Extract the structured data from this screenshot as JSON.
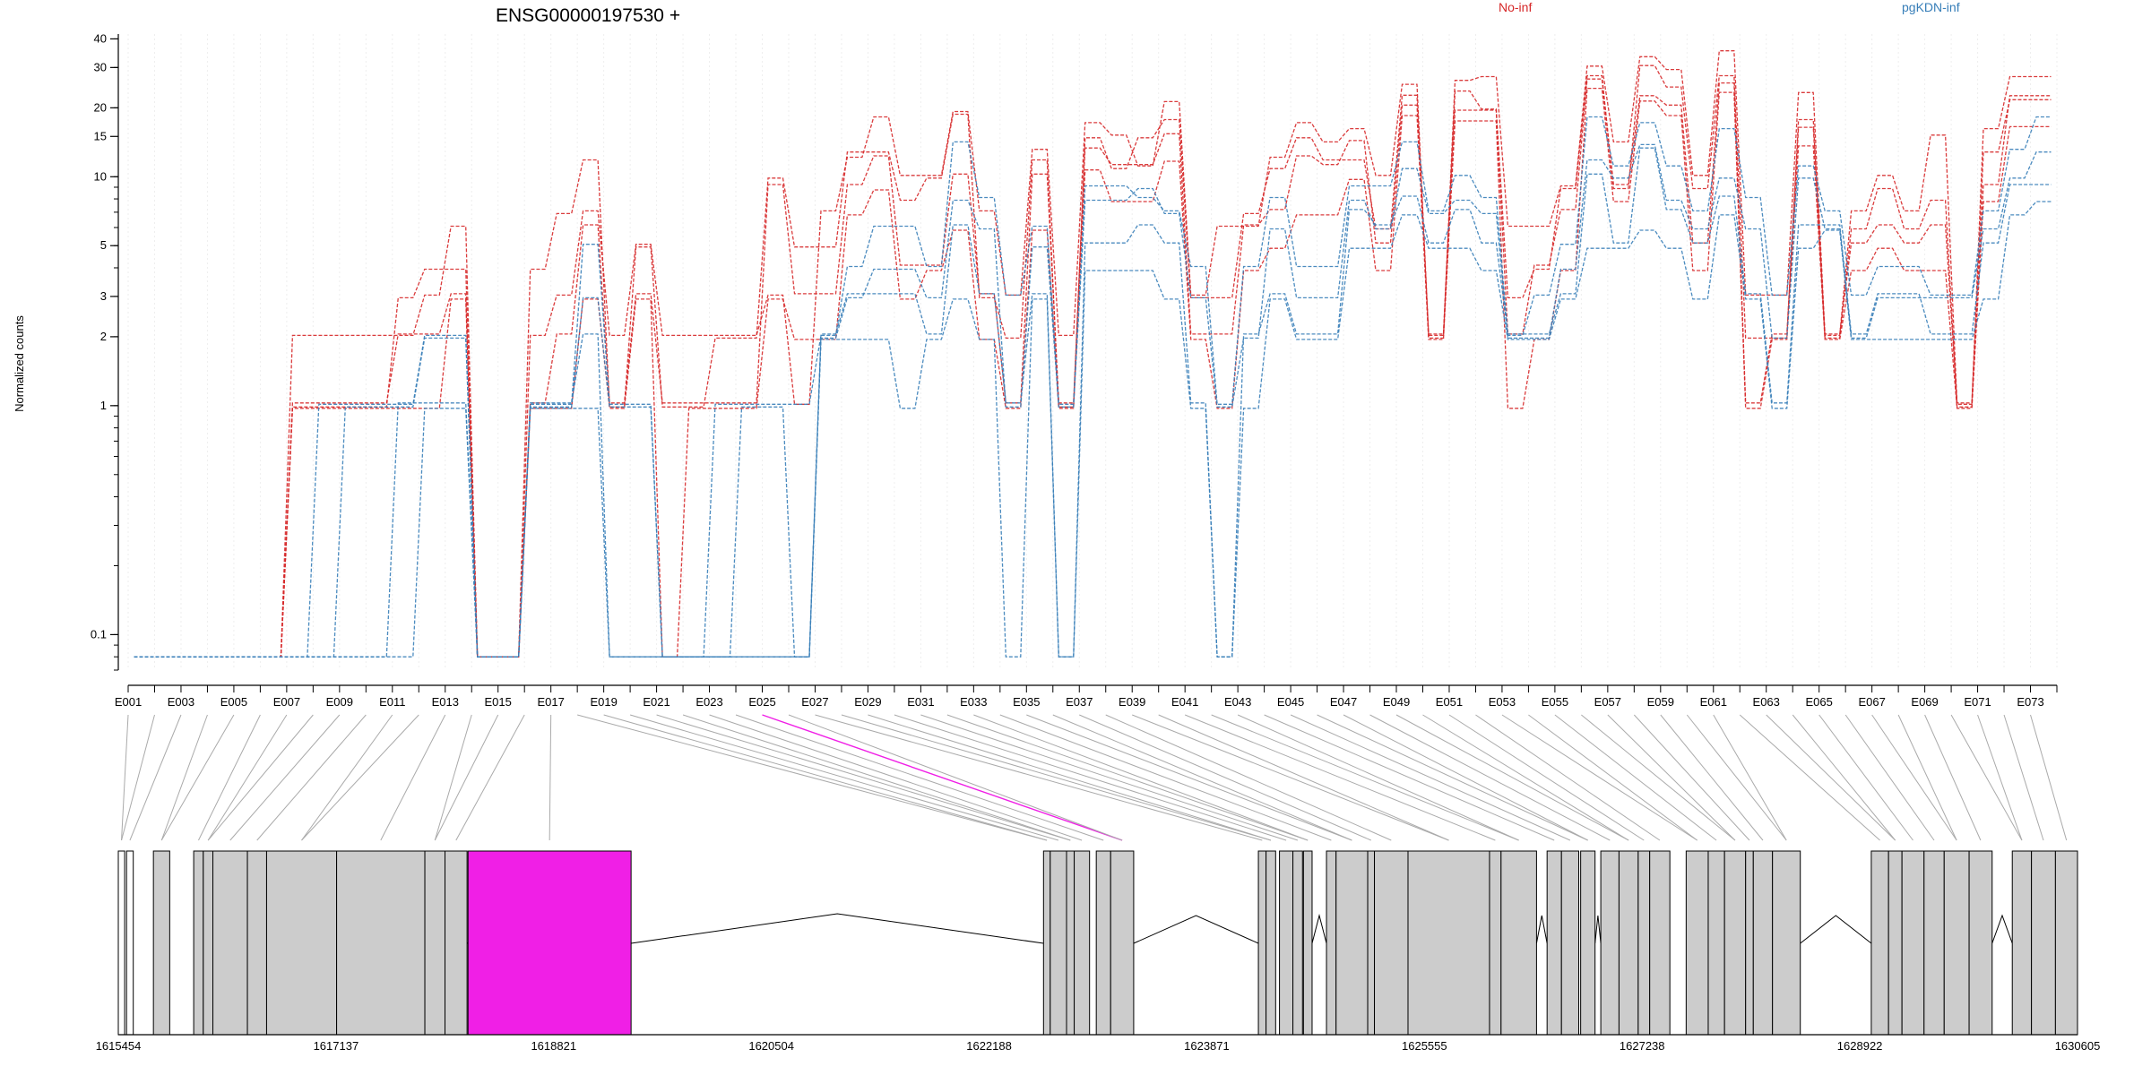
{
  "chart_data": {
    "type": "line",
    "title": "ENSG00000197530 +",
    "ylabel": "Normalized counts",
    "xlabel": "",
    "y_scale": "log",
    "ylim": [
      0.07,
      42
    ],
    "y_ticks": [
      0.1,
      1,
      2,
      3,
      5,
      10,
      15,
      20,
      30,
      40
    ],
    "grid": true,
    "legend": [
      {
        "name": "No-inf",
        "color": "#d62728"
      },
      {
        "name": "pgKDN-inf",
        "color": "#377eb8"
      }
    ],
    "colors": {
      "no_inf": "#d62728",
      "pgkdn_inf": "#377eb8",
      "highlight": "#f01fe6",
      "exon_fill": "#cccccc"
    },
    "exon_count": 73,
    "exon_tick_labels": [
      "E001",
      "E003",
      "E005",
      "E007",
      "E009",
      "E011",
      "E013",
      "E015",
      "E017",
      "E019",
      "E021",
      "E023",
      "E025",
      "E027",
      "E029",
      "E031",
      "E033",
      "E035",
      "E037",
      "E039",
      "E041",
      "E043",
      "E045",
      "E047",
      "E049",
      "E051",
      "E053",
      "E055",
      "E057",
      "E059",
      "E061",
      "E063",
      "E065",
      "E067",
      "E069",
      "E071",
      "E073"
    ],
    "highlighted_exon": "E025",
    "genomic_axis_labels": [
      "1615454",
      "1617137",
      "1618821",
      "1620504",
      "1622188",
      "1623871",
      "1625555",
      "1627238",
      "1628922",
      "1630605"
    ],
    "genomic_range": [
      1615454,
      1630605
    ],
    "series": [
      {
        "name": "No-inf",
        "sample": 1,
        "values": [
          0.08,
          0.08,
          0.08,
          0.08,
          0.08,
          0.08,
          2,
          2,
          2,
          2,
          2,
          3,
          6,
          0.08,
          0.08,
          2,
          3,
          7,
          2,
          5,
          2,
          2,
          2,
          2,
          3,
          1,
          7,
          12,
          18,
          10,
          10,
          19,
          7,
          3,
          13,
          2,
          17,
          15,
          11,
          21,
          3,
          6,
          6,
          12,
          17,
          14,
          16,
          10,
          25,
          2,
          26,
          27,
          6,
          6,
          9,
          30,
          14,
          33,
          29,
          10,
          35,
          3,
          3,
          23,
          2,
          7,
          10,
          7,
          15,
          1,
          16,
          27,
          27
        ]
      },
      {
        "name": "No-inf",
        "sample": 2,
        "values": [
          0.08,
          0.08,
          0.08,
          0.08,
          0.08,
          0.08,
          1,
          1,
          1,
          1,
          3,
          4,
          4,
          0.08,
          0.08,
          4,
          7,
          12,
          1,
          5,
          1,
          1,
          2,
          2,
          10,
          5,
          5,
          13,
          13,
          8,
          10,
          19,
          3,
          2,
          12,
          1,
          15,
          11,
          15,
          18,
          3,
          3,
          7,
          11,
          15,
          12,
          12,
          6,
          23,
          2,
          24,
          20,
          3,
          4,
          9,
          28,
          9,
          31,
          25,
          9,
          28,
          2,
          2,
          18,
          2,
          6,
          9,
          6,
          8,
          1,
          13,
          22,
          22
        ]
      },
      {
        "name": "No-inf",
        "sample": 3,
        "values": [
          0.08,
          0.08,
          0.08,
          0.08,
          0.08,
          0.08,
          1,
          1,
          1,
          1,
          2,
          2,
          3,
          0.08,
          0.08,
          1,
          2,
          6,
          1,
          3,
          1,
          1,
          1,
          1,
          9,
          3,
          3,
          9,
          12,
          4,
          4,
          10,
          3,
          1,
          10,
          1,
          13,
          11,
          11,
          15,
          2,
          2,
          6,
          7,
          12,
          11,
          14,
          5,
          20,
          2,
          19,
          19,
          2,
          4,
          7,
          26,
          9,
          22,
          20,
          5,
          25,
          1,
          2,
          16,
          2,
          5,
          6,
          5,
          6,
          1,
          9,
          22,
          22
        ]
      },
      {
        "name": "No-inf",
        "sample": 4,
        "values": [
          0.08,
          0.08,
          0.08,
          0.08,
          0.08,
          0.08,
          1,
          1,
          1,
          1,
          1,
          1,
          3,
          0.08,
          0.08,
          1,
          1,
          3,
          1,
          3,
          0.08,
          1,
          1,
          1,
          3,
          2,
          2,
          7,
          9,
          3,
          4,
          6,
          2,
          1,
          6,
          1,
          11,
          8,
          8,
          12,
          2,
          1,
          4,
          5,
          7,
          7,
          10,
          4,
          19,
          2,
          18,
          18,
          1,
          2,
          4,
          25,
          8,
          22,
          19,
          4,
          24,
          1,
          2,
          14,
          2,
          4,
          5,
          4,
          4,
          1,
          8,
          17,
          17
        ]
      },
      {
        "name": "pgKDN-inf",
        "sample": 1,
        "values": [
          0.08,
          0.08,
          0.08,
          0.08,
          0.08,
          0.08,
          0.08,
          1,
          1,
          1,
          1,
          2,
          2,
          0.08,
          0.08,
          1,
          1,
          5,
          1,
          1,
          0.08,
          0.08,
          1,
          1,
          1,
          1,
          2,
          4,
          6,
          6,
          4,
          14,
          8,
          3,
          6,
          1,
          9,
          9,
          8,
          7,
          4,
          1,
          4,
          8,
          4,
          4,
          9,
          9,
          14,
          7,
          10,
          8,
          2,
          3,
          5,
          18,
          11,
          17,
          11,
          7,
          16,
          8,
          3,
          11,
          7,
          3,
          4,
          4,
          3,
          3,
          7,
          13,
          18
        ]
      },
      {
        "name": "pgKDN-inf",
        "sample": 2,
        "values": [
          0.08,
          0.08,
          0.08,
          0.08,
          0.08,
          0.08,
          0.08,
          0.08,
          1,
          1,
          1,
          2,
          2,
          0.08,
          0.08,
          1,
          1,
          3,
          1,
          1,
          0.08,
          0.08,
          0.08,
          1,
          1,
          0.08,
          2,
          3,
          4,
          4,
          3,
          8,
          6,
          1,
          5,
          1,
          8,
          8,
          9,
          7,
          3,
          1,
          2,
          6,
          3,
          3,
          8,
          6,
          11,
          7,
          8,
          7,
          2,
          2,
          4,
          12,
          10,
          14,
          8,
          6,
          10,
          6,
          2,
          10,
          6,
          2,
          3,
          3,
          3,
          3,
          6,
          10,
          13
        ]
      },
      {
        "name": "pgKDN-inf",
        "sample": 3,
        "values": [
          0.08,
          0.08,
          0.08,
          0.08,
          0.08,
          0.08,
          0.08,
          0.08,
          0.08,
          0.08,
          1,
          1,
          1,
          0.08,
          0.08,
          1,
          1,
          2,
          0.08,
          0.08,
          0.08,
          0.08,
          0.08,
          0.08,
          0.08,
          0.08,
          2,
          3,
          3,
          3,
          2,
          6,
          3,
          1,
          3,
          0.08,
          5,
          5,
          6,
          5,
          1,
          0.08,
          2,
          3,
          2,
          2,
          7,
          6,
          8,
          5,
          7,
          5,
          2,
          2,
          3,
          10,
          5,
          13,
          7,
          5,
          8,
          3,
          1,
          6,
          6,
          2,
          3,
          3,
          2,
          2,
          5,
          9,
          9
        ]
      },
      {
        "name": "pgKDN-inf",
        "sample": 4,
        "values": [
          0.08,
          0.08,
          0.08,
          0.08,
          0.08,
          0.08,
          0.08,
          0.08,
          0.08,
          0.08,
          0.08,
          1,
          1,
          0.08,
          0.08,
          1,
          1,
          1,
          0.08,
          0.08,
          0.08,
          0.08,
          0.08,
          0.08,
          0.08,
          0.08,
          2,
          2,
          2,
          1,
          2,
          3,
          2,
          0.08,
          3,
          0.08,
          4,
          4,
          4,
          3,
          1,
          0.08,
          1,
          3,
          2,
          2,
          5,
          5,
          7,
          5,
          5,
          4,
          2,
          2,
          3,
          5,
          5,
          6,
          5,
          3,
          7,
          3,
          1,
          5,
          6,
          2,
          2,
          2,
          2,
          2,
          3,
          7,
          8
        ]
      }
    ]
  }
}
